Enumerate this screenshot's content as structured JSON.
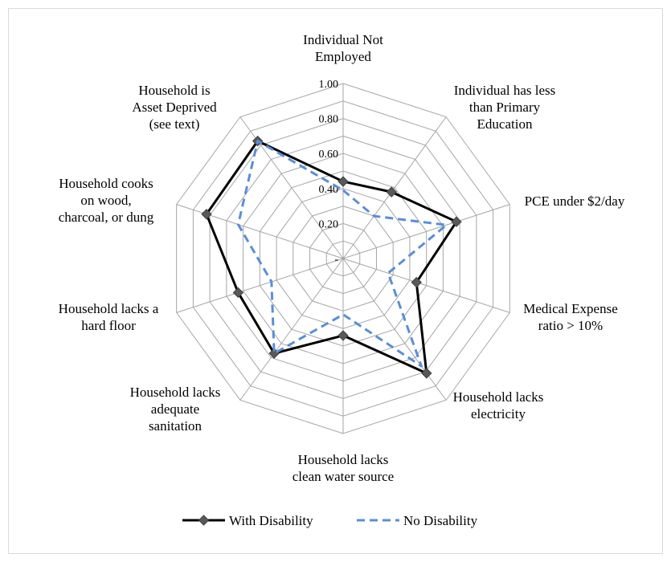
{
  "chart_data": {
    "type": "radar",
    "title": "",
    "axes": [
      {
        "label_lines": [
          "Individual Not",
          "Employed"
        ]
      },
      {
        "label_lines": [
          "Individual has less",
          "than Primary",
          "Education"
        ]
      },
      {
        "label_lines": [
          "PCE under $2/day"
        ]
      },
      {
        "label_lines": [
          "Medical Expense",
          "ratio > 10%"
        ]
      },
      {
        "label_lines": [
          "Household lacks",
          "electricity"
        ]
      },
      {
        "label_lines": [
          "Household lacks",
          "clean water source"
        ]
      },
      {
        "label_lines": [
          "Household lacks",
          "adequate",
          "sanitation"
        ]
      },
      {
        "label_lines": [
          "Household lacks a",
          "hard floor"
        ]
      },
      {
        "label_lines": [
          "Household cooks",
          "on wood,",
          "charcoal, or dung"
        ]
      },
      {
        "label_lines": [
          "Household is",
          "Asset Deprived",
          "(see text)"
        ]
      }
    ],
    "rlim": [
      0,
      1.0
    ],
    "ticks": [
      0,
      0.2,
      0.4,
      0.6,
      0.8,
      1.0
    ],
    "tick_labels": [
      "-",
      "0.20",
      "0.40",
      "0.60",
      "0.80",
      "1.00"
    ],
    "grid": true,
    "legend_position": "bottom",
    "series": [
      {
        "name": "With Disability",
        "color": "#000000",
        "line_style": "solid",
        "marker": "diamond",
        "values": [
          0.44,
          0.47,
          0.68,
          0.44,
          0.81,
          0.44,
          0.67,
          0.63,
          0.82,
          0.83
        ]
      },
      {
        "name": "No Disability",
        "color": "#5b8ed6",
        "line_style": "dashed",
        "marker": "none",
        "values": [
          0.39,
          0.3,
          0.62,
          0.27,
          0.76,
          0.32,
          0.67,
          0.43,
          0.63,
          0.83
        ]
      }
    ]
  }
}
